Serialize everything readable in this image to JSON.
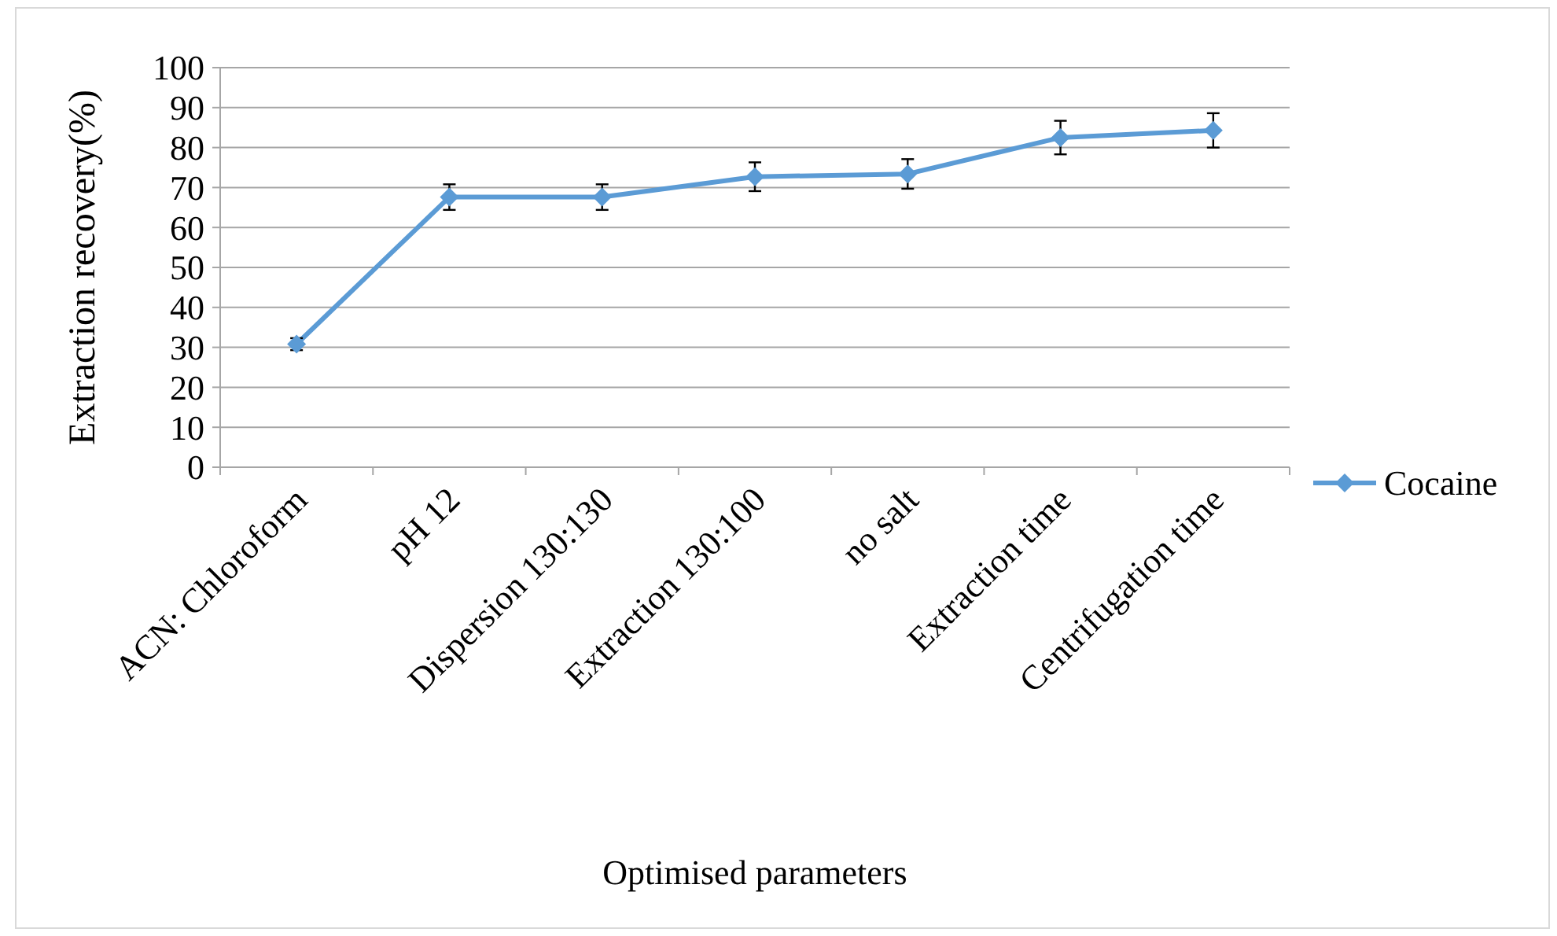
{
  "chart_data": {
    "type": "line",
    "xlabel": "Optimised parameters",
    "ylabel": "Extraction recovery(%)",
    "categories": [
      "ACN: Chloroform",
      "pH 12",
      "Dispersion 130:130",
      "Extraction 130:100",
      "no salt",
      "Extraction time",
      "Centrifugation time"
    ],
    "series": [
      {
        "name": "Cocaine",
        "color": "#5b9bd5",
        "values": [
          30.8,
          67.6,
          67.6,
          72.7,
          73.4,
          82.5,
          84.3
        ],
        "errors": [
          1.5,
          3.2,
          3.2,
          3.6,
          3.7,
          4.2,
          4.3
        ]
      }
    ],
    "ylim": [
      0,
      100
    ],
    "yticks": [
      0,
      10,
      20,
      30,
      40,
      50,
      60,
      70,
      80,
      90,
      100
    ],
    "grid": "y",
    "legend": "right",
    "marker": "diamond",
    "line_style": "solid"
  }
}
